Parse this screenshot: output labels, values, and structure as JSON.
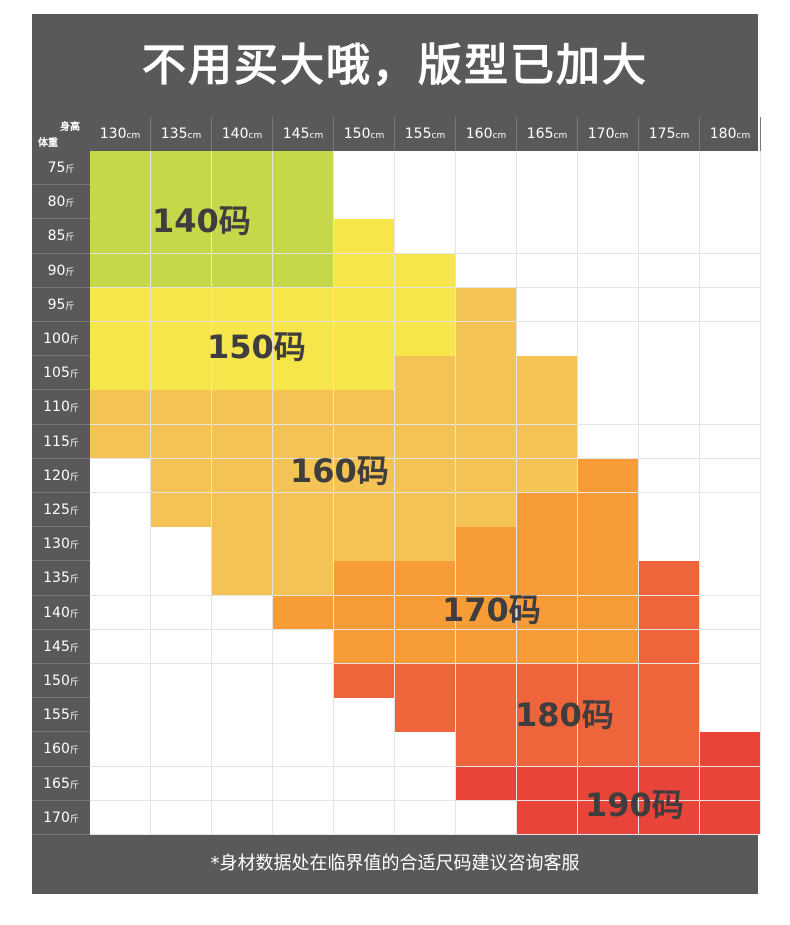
{
  "title": "不用买大哦，版型已加大",
  "corner": {
    "top": "身高",
    "bottom": "体重"
  },
  "heights": [
    {
      "value": "130",
      "unit": "cm"
    },
    {
      "value": "135",
      "unit": "cm"
    },
    {
      "value": "140",
      "unit": "cm"
    },
    {
      "value": "145",
      "unit": "cm"
    },
    {
      "value": "150",
      "unit": "cm"
    },
    {
      "value": "155",
      "unit": "cm"
    },
    {
      "value": "160",
      "unit": "cm"
    },
    {
      "value": "165",
      "unit": "cm"
    },
    {
      "value": "170",
      "unit": "cm"
    },
    {
      "value": "175",
      "unit": "cm"
    },
    {
      "value": "180",
      "unit": "cm"
    }
  ],
  "weights": [
    {
      "value": "75",
      "unit": "斤"
    },
    {
      "value": "80",
      "unit": "斤"
    },
    {
      "value": "85",
      "unit": "斤"
    },
    {
      "value": "90",
      "unit": "斤"
    },
    {
      "value": "95",
      "unit": "斤"
    },
    {
      "value": "100",
      "unit": "斤"
    },
    {
      "value": "105",
      "unit": "斤"
    },
    {
      "value": "110",
      "unit": "斤"
    },
    {
      "value": "115",
      "unit": "斤"
    },
    {
      "value": "120",
      "unit": "斤"
    },
    {
      "value": "125",
      "unit": "斤"
    },
    {
      "value": "130",
      "unit": "斤"
    },
    {
      "value": "135",
      "unit": "斤"
    },
    {
      "value": "140",
      "unit": "斤"
    },
    {
      "value": "145",
      "unit": "斤"
    },
    {
      "value": "150",
      "unit": "斤"
    },
    {
      "value": "155",
      "unit": "斤"
    },
    {
      "value": "160",
      "unit": "斤"
    },
    {
      "value": "165",
      "unit": "斤"
    },
    {
      "value": "170",
      "unit": "斤"
    }
  ],
  "sizes": [
    {
      "label": "140码",
      "color": "#c6d84a"
    },
    {
      "label": "150码",
      "color": "#f6e64c"
    },
    {
      "label": "160码",
      "color": "#f3c455"
    },
    {
      "label": "170码",
      "color": "#f89c38"
    },
    {
      "label": "180码",
      "color": "#ef653b"
    },
    {
      "label": "190码",
      "color": "#e8443a"
    }
  ],
  "size_grid": [
    [
      0,
      0,
      0,
      0,
      -1,
      -1,
      -1,
      -1,
      -1,
      -1,
      -1
    ],
    [
      0,
      0,
      0,
      0,
      -1,
      -1,
      -1,
      -1,
      -1,
      -1,
      -1
    ],
    [
      0,
      0,
      0,
      0,
      1,
      -1,
      -1,
      -1,
      -1,
      -1,
      -1
    ],
    [
      0,
      0,
      0,
      0,
      1,
      1,
      -1,
      -1,
      -1,
      -1,
      -1
    ],
    [
      1,
      1,
      1,
      1,
      1,
      1,
      2,
      -1,
      -1,
      -1,
      -1
    ],
    [
      1,
      1,
      1,
      1,
      1,
      1,
      2,
      -1,
      -1,
      -1,
      -1
    ],
    [
      1,
      1,
      1,
      1,
      1,
      2,
      2,
      2,
      -1,
      -1,
      -1
    ],
    [
      2,
      2,
      2,
      2,
      2,
      2,
      2,
      2,
      -1,
      -1,
      -1
    ],
    [
      2,
      2,
      2,
      2,
      2,
      2,
      2,
      2,
      -1,
      -1,
      -1
    ],
    [
      -1,
      2,
      2,
      2,
      2,
      2,
      2,
      2,
      3,
      -1,
      -1
    ],
    [
      -1,
      2,
      2,
      2,
      2,
      2,
      2,
      3,
      3,
      -1,
      -1
    ],
    [
      -1,
      -1,
      2,
      2,
      2,
      2,
      3,
      3,
      3,
      -1,
      -1
    ],
    [
      -1,
      -1,
      2,
      2,
      3,
      3,
      3,
      3,
      3,
      4,
      -1
    ],
    [
      -1,
      -1,
      -1,
      3,
      3,
      3,
      3,
      3,
      3,
      4,
      -1
    ],
    [
      -1,
      -1,
      -1,
      -1,
      3,
      3,
      3,
      3,
      3,
      4,
      -1
    ],
    [
      -1,
      -1,
      -1,
      -1,
      4,
      4,
      4,
      4,
      4,
      4,
      -1
    ],
    [
      -1,
      -1,
      -1,
      -1,
      -1,
      4,
      4,
      4,
      4,
      4,
      -1
    ],
    [
      -1,
      -1,
      -1,
      -1,
      -1,
      -1,
      4,
      4,
      4,
      4,
      5
    ],
    [
      -1,
      -1,
      -1,
      -1,
      -1,
      -1,
      5,
      5,
      5,
      5,
      5
    ],
    [
      -1,
      -1,
      -1,
      -1,
      -1,
      -1,
      -1,
      5,
      5,
      5,
      5
    ]
  ],
  "footer": "*身材数据处在临界值的合适尺码建议咨询客服"
}
